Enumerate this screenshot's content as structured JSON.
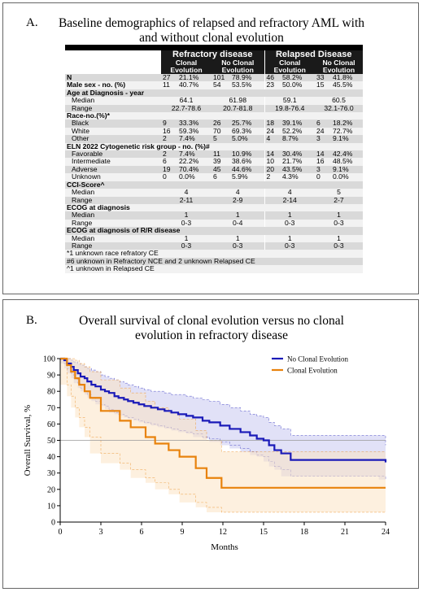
{
  "panel_a": {
    "letter": "A.",
    "title": "Baseline demographics of relapsed and refractory AML with and without clonal evolution",
    "group_headers": [
      "Refractory disease",
      "Relapsed Disease"
    ],
    "sub_headers": [
      "Clonal Evolution",
      "No Clonal Evolution",
      "Clonal Evolution",
      "No Clonal Evolution"
    ],
    "rows": [
      {
        "label": "N",
        "kind": "bold",
        "cells": [
          "27",
          "21.1%",
          "101",
          "78.9%",
          "46",
          "58.2%",
          "33",
          "41.8%"
        ]
      },
      {
        "label": "Male sex - no. (%)",
        "kind": "bold",
        "cells": [
          "11",
          "40.7%",
          "54",
          "53.5%",
          "23",
          "50.0%",
          "15",
          "45.5%"
        ]
      },
      {
        "label": "Age at Diagnosis -  year",
        "kind": "section"
      },
      {
        "label": "Median",
        "kind": "sub",
        "center": [
          "64.1",
          "61.98",
          "59.1",
          "60.5"
        ]
      },
      {
        "label": "Range",
        "kind": "sub",
        "center": [
          "22.7-78.6",
          "20.7-81.8",
          "19.8-76.4",
          "32.1-76.0"
        ]
      },
      {
        "label": "Race-no.(%)*",
        "kind": "section"
      },
      {
        "label": "Black",
        "kind": "sub",
        "cells": [
          "9",
          "33.3%",
          "26",
          "25.7%",
          "18",
          "39.1%",
          "6",
          "18.2%"
        ]
      },
      {
        "label": "White",
        "kind": "sub",
        "cells": [
          "16",
          "59.3%",
          "70",
          "69.3%",
          "24",
          "52.2%",
          "24",
          "72.7%"
        ]
      },
      {
        "label": "Other",
        "kind": "sub",
        "cells": [
          "2",
          "7.4%",
          "5",
          "5.0%",
          "4",
          "8.7%",
          "3",
          "9.1%"
        ]
      },
      {
        "label": "ELN 2022 Cytogenetic risk group - no. (%)#",
        "kind": "section"
      },
      {
        "label": "Favorable",
        "kind": "sub",
        "cells": [
          "2",
          "7.4%",
          "11",
          "10.9%",
          "14",
          "30.4%",
          "14",
          "42.4%"
        ]
      },
      {
        "label": "Intermediate",
        "kind": "sub",
        "cells": [
          "6",
          "22.2%",
          "39",
          "38.6%",
          "10",
          "21.7%",
          "16",
          "48.5%"
        ]
      },
      {
        "label": "Adverse",
        "kind": "sub",
        "cells": [
          "19",
          "70.4%",
          "45",
          "44.6%",
          "20",
          "43.5%",
          "3",
          "9.1%"
        ]
      },
      {
        "label": "Unknown",
        "kind": "sub",
        "cells": [
          "0",
          "0.0%",
          "6",
          "5.9%",
          "2",
          "4.3%",
          "0",
          "0.0%"
        ]
      },
      {
        "label": "CCI-Score^",
        "kind": "section"
      },
      {
        "label": "Median",
        "kind": "sub",
        "center": [
          "4",
          "4",
          "4",
          "5"
        ]
      },
      {
        "label": "Range",
        "kind": "sub",
        "center": [
          "2-11",
          "2-9",
          "2-14",
          "2-7"
        ]
      },
      {
        "label": "ECOG at diagnosis",
        "kind": "section"
      },
      {
        "label": "Median",
        "kind": "sub",
        "center": [
          "1",
          "1",
          "1",
          "1"
        ]
      },
      {
        "label": "Range",
        "kind": "sub",
        "center": [
          "0-3",
          "0-4",
          "0-3",
          "0-3"
        ]
      },
      {
        "label": "ECOG at diagnosis  of R/R disease",
        "kind": "section"
      },
      {
        "label": "Median",
        "kind": "sub",
        "center": [
          "1",
          "1",
          "1",
          "1"
        ]
      },
      {
        "label": "Range",
        "kind": "sub",
        "center": [
          "0-3",
          "0-3",
          "0-3",
          "0-3"
        ]
      },
      {
        "label": "*1 unknown  race refratory CE",
        "kind": "note"
      },
      {
        "label": "#6 unknown  in Refractory NCE and 2 unknown  Relapsed CE",
        "kind": "note"
      },
      {
        "label": "^1 unknown  in Relapsed CE",
        "kind": "note"
      }
    ]
  },
  "panel_b": {
    "letter": "B.",
    "title": "Overall survival of clonal evolution versus no clonal evolution in refractory disease"
  },
  "chart_data": {
    "type": "line",
    "title": "Overall survival of clonal evolution versus no clonal evolution in refractory disease",
    "xlabel": "Months",
    "ylabel": "Overall Survival, %",
    "xlim": [
      0,
      24
    ],
    "ylim": [
      0,
      100
    ],
    "xticks": [
      "0",
      "3",
      "6",
      "9",
      "12",
      "15",
      "18",
      "21",
      "24"
    ],
    "yticks": [
      "0",
      "10",
      "20",
      "30",
      "40",
      "50",
      "60",
      "70",
      "80",
      "90",
      "100"
    ],
    "reference_line": 50,
    "grid": false,
    "legend_position": "top-right",
    "series": [
      {
        "name": "No Clonal Evolution",
        "color": "#1a1ab8",
        "band_color": "#c9c9f0",
        "x": [
          0,
          0.3,
          0.5,
          0.8,
          1.0,
          1.3,
          1.5,
          1.8,
          2.0,
          2.3,
          2.6,
          3.0,
          3.3,
          3.6,
          4.0,
          4.3,
          4.7,
          5.0,
          5.4,
          5.8,
          6.2,
          6.7,
          7.2,
          7.7,
          8.2,
          8.7,
          9.3,
          9.8,
          10.5,
          11.0,
          11.8,
          12.5,
          13.3,
          14.0,
          14.5,
          15.0,
          15.4,
          15.8,
          16.3,
          17.0,
          23.5,
          24.0
        ],
        "y": [
          100,
          99,
          97,
          95,
          93,
          91,
          89,
          88,
          86,
          84,
          83,
          81,
          80,
          79,
          77,
          76,
          75,
          74,
          73,
          72,
          71,
          70,
          69,
          68,
          67,
          66,
          65,
          64,
          62,
          61,
          59,
          57,
          55,
          53,
          51,
          50,
          47,
          44,
          42,
          38,
          38,
          36.5
        ],
        "upper": [
          100,
          100,
          100,
          99,
          98,
          97,
          96,
          95,
          94,
          93,
          92,
          90,
          89,
          88,
          87,
          86,
          85,
          84,
          83,
          82,
          81,
          80,
          80,
          79,
          78,
          78,
          77,
          76,
          75,
          74,
          72,
          70,
          68,
          66,
          65,
          64,
          61,
          59,
          57,
          53,
          53,
          47
        ],
        "lower": [
          100,
          97,
          94,
          91,
          88,
          85,
          82,
          80,
          78,
          76,
          74,
          72,
          71,
          69,
          67,
          66,
          65,
          64,
          63,
          62,
          61,
          60,
          59,
          58,
          57,
          56,
          55,
          54,
          52,
          51,
          49,
          47,
          45,
          43,
          41,
          40,
          37,
          34,
          32,
          28,
          28,
          26
        ]
      },
      {
        "name": "Clonal Evolution",
        "color": "#e8820c",
        "band_color": "#fbe3c5",
        "x": [
          0,
          0.5,
          0.8,
          1.1,
          1.4,
          1.8,
          2.2,
          3.0,
          4.4,
          5.2,
          6.3,
          7.0,
          8.0,
          8.8,
          10.0,
          10.8,
          11.9,
          24.0
        ],
        "y": [
          100,
          96,
          92,
          88,
          84,
          80,
          76,
          68,
          62,
          58,
          52,
          48,
          44,
          40,
          33,
          27,
          21,
          21
        ],
        "upper": [
          100,
          100,
          100,
          99,
          97,
          95,
          92,
          87,
          82,
          79,
          74,
          70,
          67,
          63,
          56,
          50,
          43,
          43
        ],
        "lower": [
          100,
          84,
          77,
          70,
          64,
          58,
          52,
          42,
          36,
          32,
          27,
          24,
          20,
          17,
          12,
          9,
          6,
          6
        ]
      }
    ]
  }
}
